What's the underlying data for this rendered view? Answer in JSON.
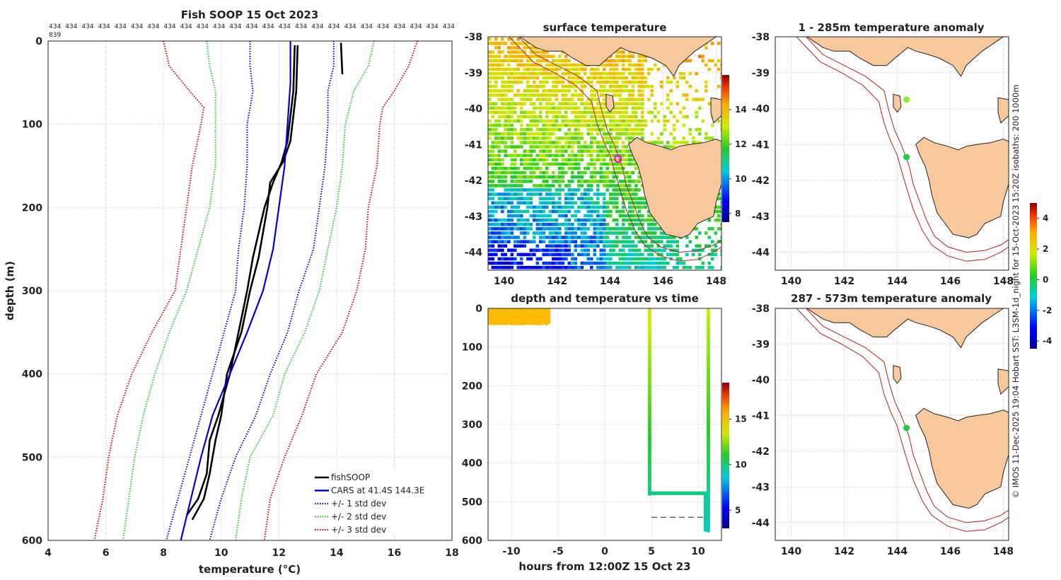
{
  "chart_data": [
    {
      "type": "line",
      "title": "Fish SOOP 15 Oct 2023",
      "xlabel": "temperature (°C)",
      "ylabel": "depth (m)",
      "xlim": [
        4,
        18
      ],
      "ylim": [
        600,
        0
      ],
      "xticks": [
        4,
        6,
        8,
        10,
        12,
        14,
        16,
        18
      ],
      "yticks": [
        0,
        100,
        200,
        300,
        400,
        500,
        600
      ],
      "header_numbers": [
        "434",
        "434",
        "434",
        "434",
        "434",
        "434",
        "434",
        "434",
        "434",
        "434",
        "434",
        "434",
        "434",
        "434",
        "434",
        "434",
        "434",
        "434",
        "434",
        "434",
        "434",
        "434",
        "434",
        "434",
        "434",
        "839"
      ],
      "series": [
        {
          "name": "fishSOOP",
          "color": "#000000",
          "style": "solid",
          "depth": [
            5,
            60,
            120,
            145,
            170,
            200,
            260,
            300,
            350,
            400,
            450,
            480,
            520,
            550,
            570
          ],
          "temp": [
            12.55,
            12.5,
            12.3,
            12.1,
            11.8,
            11.5,
            11.1,
            10.9,
            10.6,
            10.3,
            9.9,
            9.6,
            9.5,
            9.2,
            8.8
          ]
        },
        {
          "name": "fishSOOP",
          "color": "#000000",
          "style": "solid",
          "depth": [
            5,
            60,
            120,
            145,
            170,
            200,
            260,
            300,
            350,
            400,
            450,
            480,
            520,
            550,
            575
          ],
          "temp": [
            12.65,
            12.6,
            12.4,
            12.15,
            11.7,
            11.6,
            11.3,
            11.0,
            10.7,
            10.2,
            10.0,
            9.8,
            9.6,
            9.4,
            9.0
          ]
        },
        {
          "name": "fishSOOP",
          "color": "#000000",
          "style": "solid",
          "depth": [
            2,
            40
          ],
          "temp": [
            14.15,
            14.2
          ]
        },
        {
          "name": "CARS at 41.4S 144.3E",
          "color": "#0000dd",
          "style": "solid",
          "depth": [
            0,
            50,
            100,
            150,
            200,
            250,
            300,
            350,
            400,
            450,
            500,
            550,
            600
          ],
          "temp": [
            12.4,
            12.4,
            12.3,
            12.2,
            12.0,
            11.8,
            11.45,
            10.9,
            10.3,
            9.7,
            9.3,
            8.95,
            8.6
          ]
        },
        {
          "name": "+/- 1 std dev",
          "color": "#0000dd",
          "style": "dotted",
          "depth": [
            0,
            30,
            60,
            100,
            150,
            200,
            250,
            300,
            350,
            400,
            450,
            500,
            550,
            600
          ],
          "temp": [
            11.0,
            11.0,
            11.1,
            10.9,
            10.9,
            10.8,
            10.6,
            10.5,
            10.1,
            9.7,
            9.3,
            8.9,
            8.5,
            8.1
          ]
        },
        {
          "name": "+/- 1 std dev upper",
          "color": "#0000dd",
          "style": "dotted",
          "depth": [
            0,
            30,
            60,
            100,
            150,
            200,
            250,
            300,
            350,
            400,
            450,
            500,
            550,
            600
          ],
          "temp": [
            13.9,
            13.9,
            13.7,
            13.7,
            13.6,
            13.4,
            13.2,
            12.7,
            12.3,
            11.7,
            11.2,
            10.5,
            10.0,
            9.6
          ]
        },
        {
          "name": "+/- 2 std dev",
          "color": "#22cc22",
          "style": "dotted",
          "depth": [
            0,
            30,
            60,
            100,
            150,
            200,
            250,
            300,
            350,
            400,
            450,
            500,
            550,
            600
          ],
          "temp": [
            9.5,
            9.6,
            9.8,
            9.8,
            9.8,
            9.6,
            9.2,
            8.8,
            8.2,
            7.7,
            7.3,
            7.0,
            6.8,
            6.6
          ]
        },
        {
          "name": "+/- 2 std dev upper",
          "color": "#22cc22",
          "style": "dotted",
          "depth": [
            0,
            30,
            60,
            100,
            150,
            200,
            250,
            300,
            350,
            400,
            450,
            500,
            550,
            600
          ],
          "temp": [
            15.3,
            15.1,
            14.6,
            14.3,
            14.2,
            14.0,
            13.7,
            13.4,
            12.9,
            12.2,
            11.8,
            11.0,
            10.7,
            10.5
          ]
        },
        {
          "name": "+/- 3 std dev",
          "color": "#dd0000",
          "style": "dotted",
          "depth": [
            0,
            30,
            60,
            80,
            100,
            150,
            200,
            250,
            300,
            350,
            400,
            450,
            500,
            550,
            600
          ],
          "temp": [
            8.0,
            8.2,
            8.9,
            9.4,
            9.3,
            9.0,
            8.8,
            8.6,
            8.4,
            7.6,
            6.9,
            6.4,
            6.1,
            5.9,
            5.6
          ]
        },
        {
          "name": "+/- 3 std dev upper",
          "color": "#dd0000",
          "style": "dotted",
          "depth": [
            0,
            30,
            60,
            80,
            100,
            150,
            200,
            250,
            300,
            350,
            400,
            450,
            500,
            550,
            600
          ],
          "temp": [
            16.8,
            16.5,
            16.0,
            15.6,
            15.5,
            15.4,
            15.1,
            15.0,
            14.7,
            14.2,
            13.3,
            12.8,
            12.2,
            11.7,
            11.5
          ]
        }
      ],
      "legend": [
        {
          "label": "fishSOOP",
          "color": "#000000",
          "style": "solid"
        },
        {
          "label": "CARS at 41.4S 144.3E",
          "color": "#0000dd",
          "style": "solid"
        },
        {
          "label": "+/- 1 std dev",
          "color": "#0000dd",
          "style": "dotted"
        },
        {
          "label": "+/- 2 std dev",
          "color": "#22cc22",
          "style": "dotted"
        },
        {
          "label": "+/- 3 std dev",
          "color": "#dd0000",
          "style": "dotted"
        }
      ]
    },
    {
      "type": "heatmap",
      "title": "surface temperature",
      "xlim": [
        139.4,
        148.2
      ],
      "ylim": [
        -44.5,
        -38
      ],
      "xticks": [
        140,
        142,
        144,
        146,
        148
      ],
      "yticks": [
        -38,
        -39,
        -40,
        -41,
        -42,
        -43,
        -44
      ],
      "marker": {
        "lon": 144.3,
        "lat": -41.4,
        "color": "#ff00ff"
      },
      "colorbar": {
        "range": [
          7.5,
          16
        ],
        "ticks": [
          8,
          10,
          12,
          14
        ]
      }
    },
    {
      "type": "scatter",
      "title": "depth and temperature vs time",
      "xlabel": "hours from 12:00Z 15 Oct 23",
      "xlim": [
        -12.5,
        12.5
      ],
      "ylim": [
        600,
        0
      ],
      "xticks": [
        -10,
        -5,
        0,
        5,
        10
      ],
      "yticks": [
        0,
        100,
        200,
        300,
        400,
        500,
        600
      ],
      "reference_depth": 540,
      "colorbar": {
        "range": [
          3,
          19
        ],
        "ticks": [
          5,
          10,
          15
        ]
      }
    },
    {
      "type": "heatmap",
      "title": "1 - 285m temperature anomaly",
      "xlim": [
        139.4,
        148.2
      ],
      "ylim": [
        -44.5,
        -38
      ],
      "xticks": [
        140,
        142,
        144,
        146,
        148
      ],
      "yticks": [
        -38,
        -39,
        -40,
        -41,
        -42,
        -43,
        -44
      ],
      "points": [
        {
          "lon": 144.35,
          "lat": -39.75,
          "color": "#88ee22"
        },
        {
          "lon": 144.35,
          "lat": -41.35,
          "color": "#22cc44"
        }
      ],
      "colorbar": {
        "range": [
          -4.5,
          5
        ],
        "ticks": [
          4,
          2,
          0,
          -2,
          -4
        ]
      }
    },
    {
      "type": "heatmap",
      "title": "287 - 573m temperature anomaly",
      "xlim": [
        139.4,
        148.2
      ],
      "ylim": [
        -44.5,
        -38
      ],
      "xticks": [
        140,
        142,
        144,
        146,
        148
      ],
      "yticks": [
        -38,
        -39,
        -40,
        -41,
        -42,
        -43,
        -44
      ],
      "points": [
        {
          "lon": 144.35,
          "lat": -41.35,
          "color": "#22cc44"
        }
      ]
    }
  ],
  "side_caption": "© IMOS 11-Dec-2025 19:04 Hobart SST: L3SM-1d_night for 15-Oct-2023 15:20Z isobaths: 200  1000m"
}
